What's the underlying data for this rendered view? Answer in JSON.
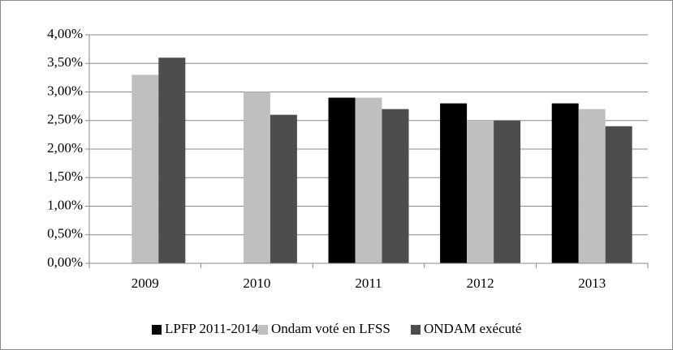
{
  "chart_data": {
    "type": "bar",
    "categories": [
      "2009",
      "2010",
      "2011",
      "2012",
      "2013"
    ],
    "series": [
      {
        "name": "LPFP 2011-2014",
        "color": "#000000",
        "values": [
          null,
          null,
          2.9,
          2.8,
          2.8
        ]
      },
      {
        "name": "Ondam voté en LFSS",
        "color": "#bfbfbf",
        "values": [
          3.3,
          3.0,
          2.9,
          2.5,
          2.7
        ]
      },
      {
        "name": "ONDAM exécuté",
        "color": "#4d4d4d",
        "values": [
          3.6,
          2.6,
          2.7,
          2.5,
          2.4
        ]
      }
    ],
    "ylim": [
      0,
      4
    ],
    "yticks": [
      {
        "value": 0,
        "label": "0,00%"
      },
      {
        "value": 0.5,
        "label": "0,50%"
      },
      {
        "value": 1,
        "label": "1,00%"
      },
      {
        "value": 1.5,
        "label": "1,50%"
      },
      {
        "value": 2,
        "label": "2,00%"
      },
      {
        "value": 2.5,
        "label": "2,50%"
      },
      {
        "value": 3,
        "label": "3,00%"
      },
      {
        "value": 3.5,
        "label": "3,50%"
      },
      {
        "value": 4,
        "label": "4,00%"
      }
    ],
    "grid": true,
    "legend": "bottom"
  }
}
